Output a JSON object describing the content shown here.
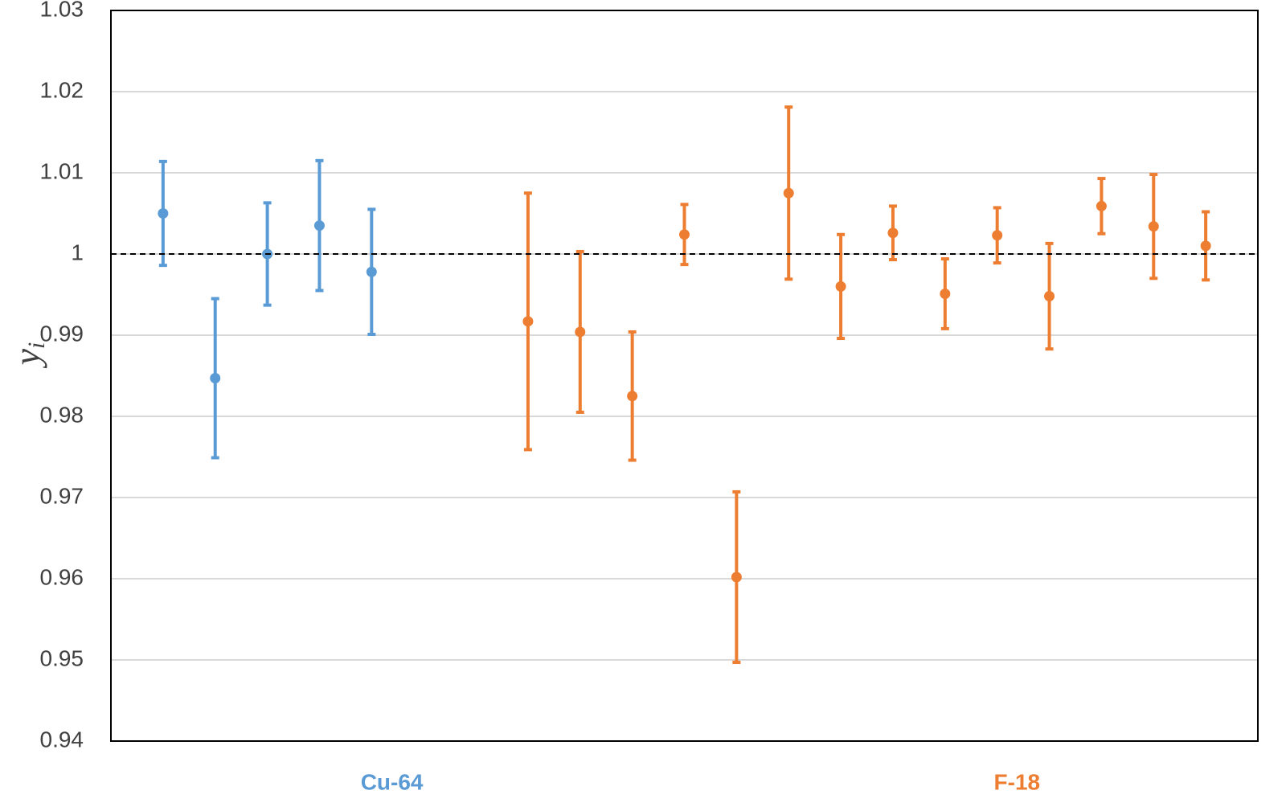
{
  "chart_data": {
    "type": "errorbar",
    "ylabel": "y",
    "ylabel_subscript": "i",
    "xlim": [
      0,
      22
    ],
    "ylim": [
      0.94,
      1.03
    ],
    "yticks": [
      0.94,
      0.95,
      0.96,
      0.97,
      0.98,
      0.99,
      1,
      1.01,
      1.02,
      1.03
    ],
    "grid": true,
    "reference_line": 1,
    "series": [
      {
        "name": "Cu-64",
        "color": "#5b9bd5",
        "x": [
          1,
          2,
          3,
          4,
          5
        ],
        "values": [
          1.005,
          0.9847,
          1.0,
          1.0035,
          0.9978
        ],
        "errors": [
          0.0064,
          0.0098,
          0.0063,
          0.008,
          0.0077
        ]
      },
      {
        "name": "F-18",
        "color": "#ed7d31",
        "x": [
          8,
          9,
          10,
          11,
          12,
          13,
          14,
          15,
          16,
          17,
          18,
          19,
          20,
          21
        ],
        "values": [
          0.9917,
          0.9904,
          0.9825,
          1.0024,
          0.9602,
          1.0075,
          0.996,
          1.0026,
          0.9951,
          1.0023,
          0.9948,
          1.0059,
          1.0034,
          1.001
        ],
        "errors": [
          0.0158,
          0.0099,
          0.0079,
          0.0037,
          0.0105,
          0.0106,
          0.0064,
          0.0033,
          0.0043,
          0.0034,
          0.0065,
          0.0034,
          0.0064,
          0.0042
        ]
      }
    ]
  }
}
